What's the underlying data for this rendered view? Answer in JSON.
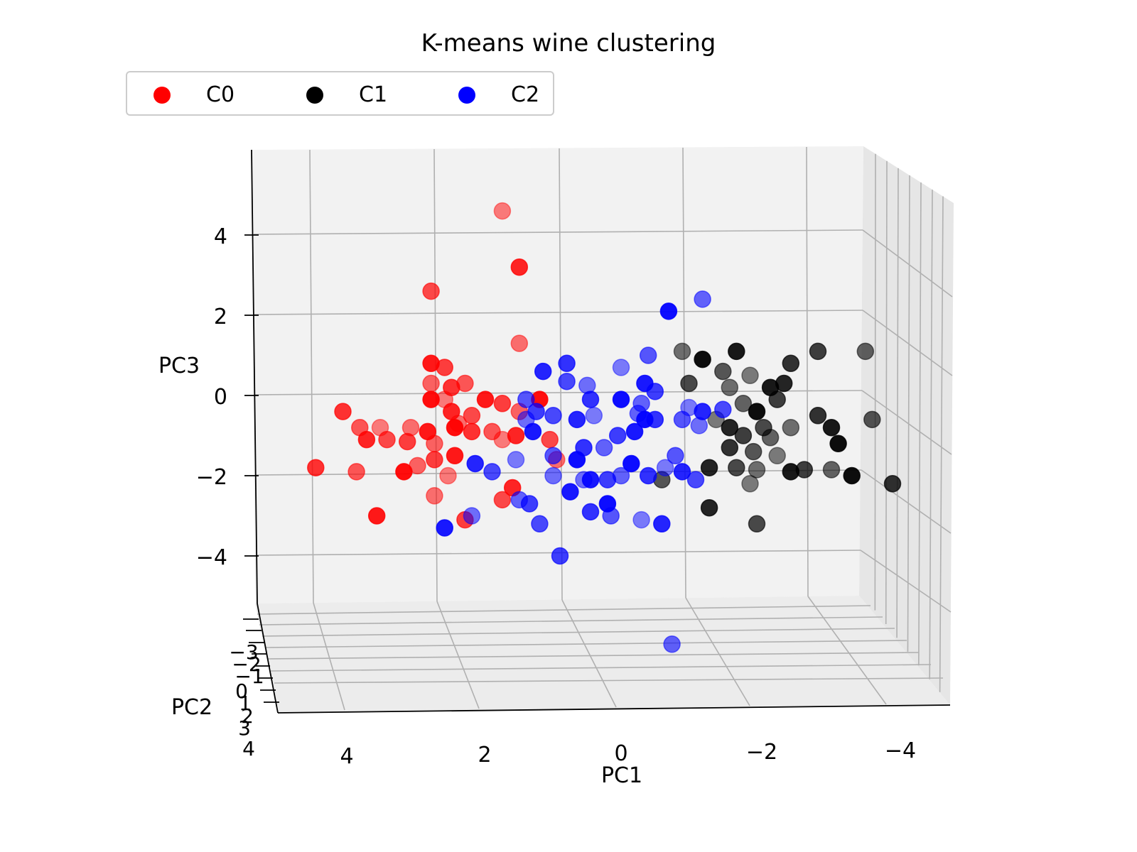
{
  "chart_data": {
    "type": "scatter",
    "projection": "3d",
    "title": "K-means wine clustering",
    "xlabel": "PC1",
    "ylabel": "PC2",
    "zlabel": "PC3",
    "x_ticks": [
      "4",
      "2",
      "0",
      "−2",
      "−4"
    ],
    "y_ticks": [
      "−3",
      "−2",
      "−1",
      "0",
      "1",
      "2",
      "3",
      "4"
    ],
    "z_ticks": [
      "4",
      "2",
      "0",
      "−2",
      "−4"
    ],
    "grid": true,
    "legend_position": "upper-left",
    "legend_columns": 3,
    "series": [
      {
        "name": "C0",
        "color": "#ff0000",
        "points": [
          [
            1.75,
            0.5,
            4.6
          ],
          [
            1.5,
            0.5,
            3.2
          ],
          [
            2.8,
            0.5,
            2.6
          ],
          [
            1.5,
            0.5,
            1.3
          ],
          [
            2.8,
            0.5,
            0.8
          ],
          [
            2.6,
            0.5,
            0.7
          ],
          [
            2.8,
            0.5,
            0.3
          ],
          [
            2.8,
            0.5,
            -0.1
          ],
          [
            2.5,
            0.5,
            0.2
          ],
          [
            2.3,
            0.5,
            0.3
          ],
          [
            2.6,
            0.5,
            -0.1
          ],
          [
            2.5,
            0.5,
            -0.4
          ],
          [
            2.2,
            0.5,
            -0.5
          ],
          [
            2.4,
            0.5,
            -0.7
          ],
          [
            2.0,
            0.5,
            -0.1
          ],
          [
            1.75,
            0.5,
            -0.2
          ],
          [
            1.5,
            0.5,
            -0.4
          ],
          [
            1.2,
            0.5,
            -0.1
          ],
          [
            4.1,
            0.5,
            -0.4
          ],
          [
            3.85,
            0.5,
            -0.8
          ],
          [
            3.55,
            0.5,
            -0.8
          ],
          [
            3.75,
            0.5,
            -1.1
          ],
          [
            3.45,
            0.5,
            -1.1
          ],
          [
            3.1,
            0.5,
            -0.8
          ],
          [
            2.85,
            0.5,
            -0.9
          ],
          [
            3.15,
            0.5,
            -1.15
          ],
          [
            2.75,
            0.5,
            -1.2
          ],
          [
            2.45,
            0.5,
            -0.8
          ],
          [
            2.2,
            0.5,
            -0.9
          ],
          [
            1.9,
            0.5,
            -0.9
          ],
          [
            1.75,
            0.5,
            -1.1
          ],
          [
            1.55,
            0.5,
            -1.0
          ],
          [
            1.05,
            0.5,
            -1.1
          ],
          [
            0.95,
            0.5,
            -1.6
          ],
          [
            2.45,
            0.5,
            -1.5
          ],
          [
            2.75,
            0.5,
            -1.6
          ],
          [
            3.0,
            0.5,
            -1.75
          ],
          [
            3.2,
            0.5,
            -1.9
          ],
          [
            4.5,
            0.5,
            -1.8
          ],
          [
            3.9,
            0.5,
            -1.9
          ],
          [
            2.55,
            0.5,
            -2.0
          ],
          [
            1.6,
            0.5,
            -2.3
          ],
          [
            1.75,
            0.5,
            -2.6
          ],
          [
            2.75,
            0.5,
            -2.5
          ],
          [
            3.6,
            0.5,
            -3.0
          ],
          [
            2.3,
            0.5,
            -3.1
          ]
        ]
      },
      {
        "name": "C1",
        "color": "#000000",
        "points": [
          [
            -0.9,
            0.5,
            1.1
          ],
          [
            -1.7,
            0.5,
            1.1
          ],
          [
            -2.9,
            0.5,
            1.1
          ],
          [
            -3.6,
            0.5,
            1.1
          ],
          [
            -1.2,
            0.5,
            0.9
          ],
          [
            -2.5,
            0.5,
            0.8
          ],
          [
            -1.5,
            0.5,
            0.6
          ],
          [
            -1.9,
            0.5,
            0.5
          ],
          [
            -2.4,
            0.5,
            0.3
          ],
          [
            -1.0,
            0.5,
            0.3
          ],
          [
            -1.6,
            0.5,
            0.2
          ],
          [
            -2.2,
            0.5,
            0.2
          ],
          [
            -2.3,
            0.5,
            -0.1
          ],
          [
            -1.8,
            0.5,
            -0.2
          ],
          [
            -2.0,
            0.5,
            -0.4
          ],
          [
            -2.9,
            0.5,
            -0.5
          ],
          [
            -3.7,
            0.5,
            -0.6
          ],
          [
            -1.4,
            0.5,
            -0.6
          ],
          [
            -1.6,
            0.5,
            -0.8
          ],
          [
            -2.1,
            0.5,
            -0.8
          ],
          [
            -2.5,
            0.5,
            -0.8
          ],
          [
            -3.1,
            0.5,
            -0.8
          ],
          [
            -1.8,
            0.5,
            -1.0
          ],
          [
            -2.2,
            0.5,
            -1.05
          ],
          [
            -3.2,
            0.5,
            -1.2
          ],
          [
            -1.6,
            0.5,
            -1.3
          ],
          [
            -1.95,
            0.5,
            -1.4
          ],
          [
            -2.3,
            0.5,
            -1.5
          ],
          [
            -1.3,
            0.5,
            -1.8
          ],
          [
            -1.7,
            0.5,
            -1.8
          ],
          [
            -2.0,
            0.5,
            -1.85
          ],
          [
            -2.5,
            0.5,
            -1.9
          ],
          [
            -2.7,
            0.5,
            -1.85
          ],
          [
            -3.1,
            0.5,
            -1.85
          ],
          [
            -3.4,
            0.5,
            -2.0
          ],
          [
            -4.0,
            0.5,
            -2.2
          ],
          [
            -0.6,
            0.5,
            -2.1
          ],
          [
            -1.9,
            0.5,
            -2.2
          ],
          [
            -1.3,
            0.5,
            -2.8
          ],
          [
            -2.0,
            0.5,
            -3.2
          ]
        ]
      },
      {
        "name": "C2",
        "color": "#0000ff",
        "points": [
          [
            -1.2,
            0.5,
            2.4
          ],
          [
            -0.7,
            0.5,
            2.1
          ],
          [
            0.8,
            0.5,
            0.8
          ],
          [
            -0.4,
            0.5,
            1.0
          ],
          [
            0.0,
            0.5,
            0.7
          ],
          [
            1.15,
            0.5,
            0.6
          ],
          [
            0.8,
            0.5,
            0.35
          ],
          [
            0.5,
            0.5,
            0.25
          ],
          [
            -0.35,
            0.5,
            0.3
          ],
          [
            -0.5,
            0.5,
            0.1
          ],
          [
            -0.3,
            0.5,
            -0.2
          ],
          [
            0.0,
            0.5,
            -0.1
          ],
          [
            0.45,
            0.5,
            -0.1
          ],
          [
            1.4,
            0.5,
            -0.1
          ],
          [
            0.4,
            0.5,
            -0.5
          ],
          [
            0.65,
            0.5,
            -0.6
          ],
          [
            1.0,
            0.5,
            -0.5
          ],
          [
            1.4,
            0.5,
            -0.6
          ],
          [
            1.3,
            0.5,
            -0.9
          ],
          [
            1.25,
            0.5,
            -0.4
          ],
          [
            -0.25,
            0.5,
            -0.45
          ],
          [
            -0.35,
            0.5,
            -0.6
          ],
          [
            -0.5,
            0.5,
            -0.6
          ],
          [
            -0.9,
            0.5,
            -0.6
          ],
          [
            -1.0,
            0.5,
            -0.3
          ],
          [
            -1.2,
            0.5,
            -0.4
          ],
          [
            -1.5,
            0.5,
            -0.35
          ],
          [
            -1.15,
            0.5,
            -0.75
          ],
          [
            -0.2,
            0.5,
            -0.9
          ],
          [
            0.05,
            0.5,
            -1.0
          ],
          [
            0.25,
            0.5,
            -1.3
          ],
          [
            0.65,
            0.5,
            -1.6
          ],
          [
            0.55,
            0.5,
            -1.3
          ],
          [
            1.0,
            0.5,
            -1.5
          ],
          [
            1.55,
            0.5,
            -1.6
          ],
          [
            2.15,
            0.5,
            -1.7
          ],
          [
            1.9,
            0.5,
            -1.9
          ],
          [
            1.0,
            0.5,
            -2.0
          ],
          [
            0.45,
            0.5,
            -2.1
          ],
          [
            0.2,
            0.5,
            -2.1
          ],
          [
            0.0,
            0.5,
            -2.0
          ],
          [
            -0.15,
            0.5,
            -1.7
          ],
          [
            -0.4,
            0.5,
            -2.0
          ],
          [
            -0.8,
            0.5,
            -1.5
          ],
          [
            -0.65,
            0.5,
            -1.8
          ],
          [
            -0.9,
            0.5,
            -1.9
          ],
          [
            -1.1,
            0.5,
            -2.1
          ],
          [
            0.55,
            0.5,
            -2.1
          ],
          [
            0.75,
            0.5,
            -2.4
          ],
          [
            1.35,
            0.5,
            -2.7
          ],
          [
            1.5,
            0.5,
            -2.6
          ],
          [
            0.2,
            0.5,
            -2.7
          ],
          [
            0.45,
            0.5,
            -2.9
          ],
          [
            0.15,
            0.5,
            -3.0
          ],
          [
            -0.3,
            0.5,
            -3.1
          ],
          [
            -0.6,
            0.5,
            -3.2
          ],
          [
            1.2,
            0.5,
            -3.2
          ],
          [
            2.2,
            0.5,
            -3.0
          ],
          [
            2.6,
            0.5,
            -3.3
          ],
          [
            0.9,
            0.5,
            -4.0
          ],
          [
            -0.75,
            0.5,
            -6.2
          ]
        ]
      }
    ]
  }
}
